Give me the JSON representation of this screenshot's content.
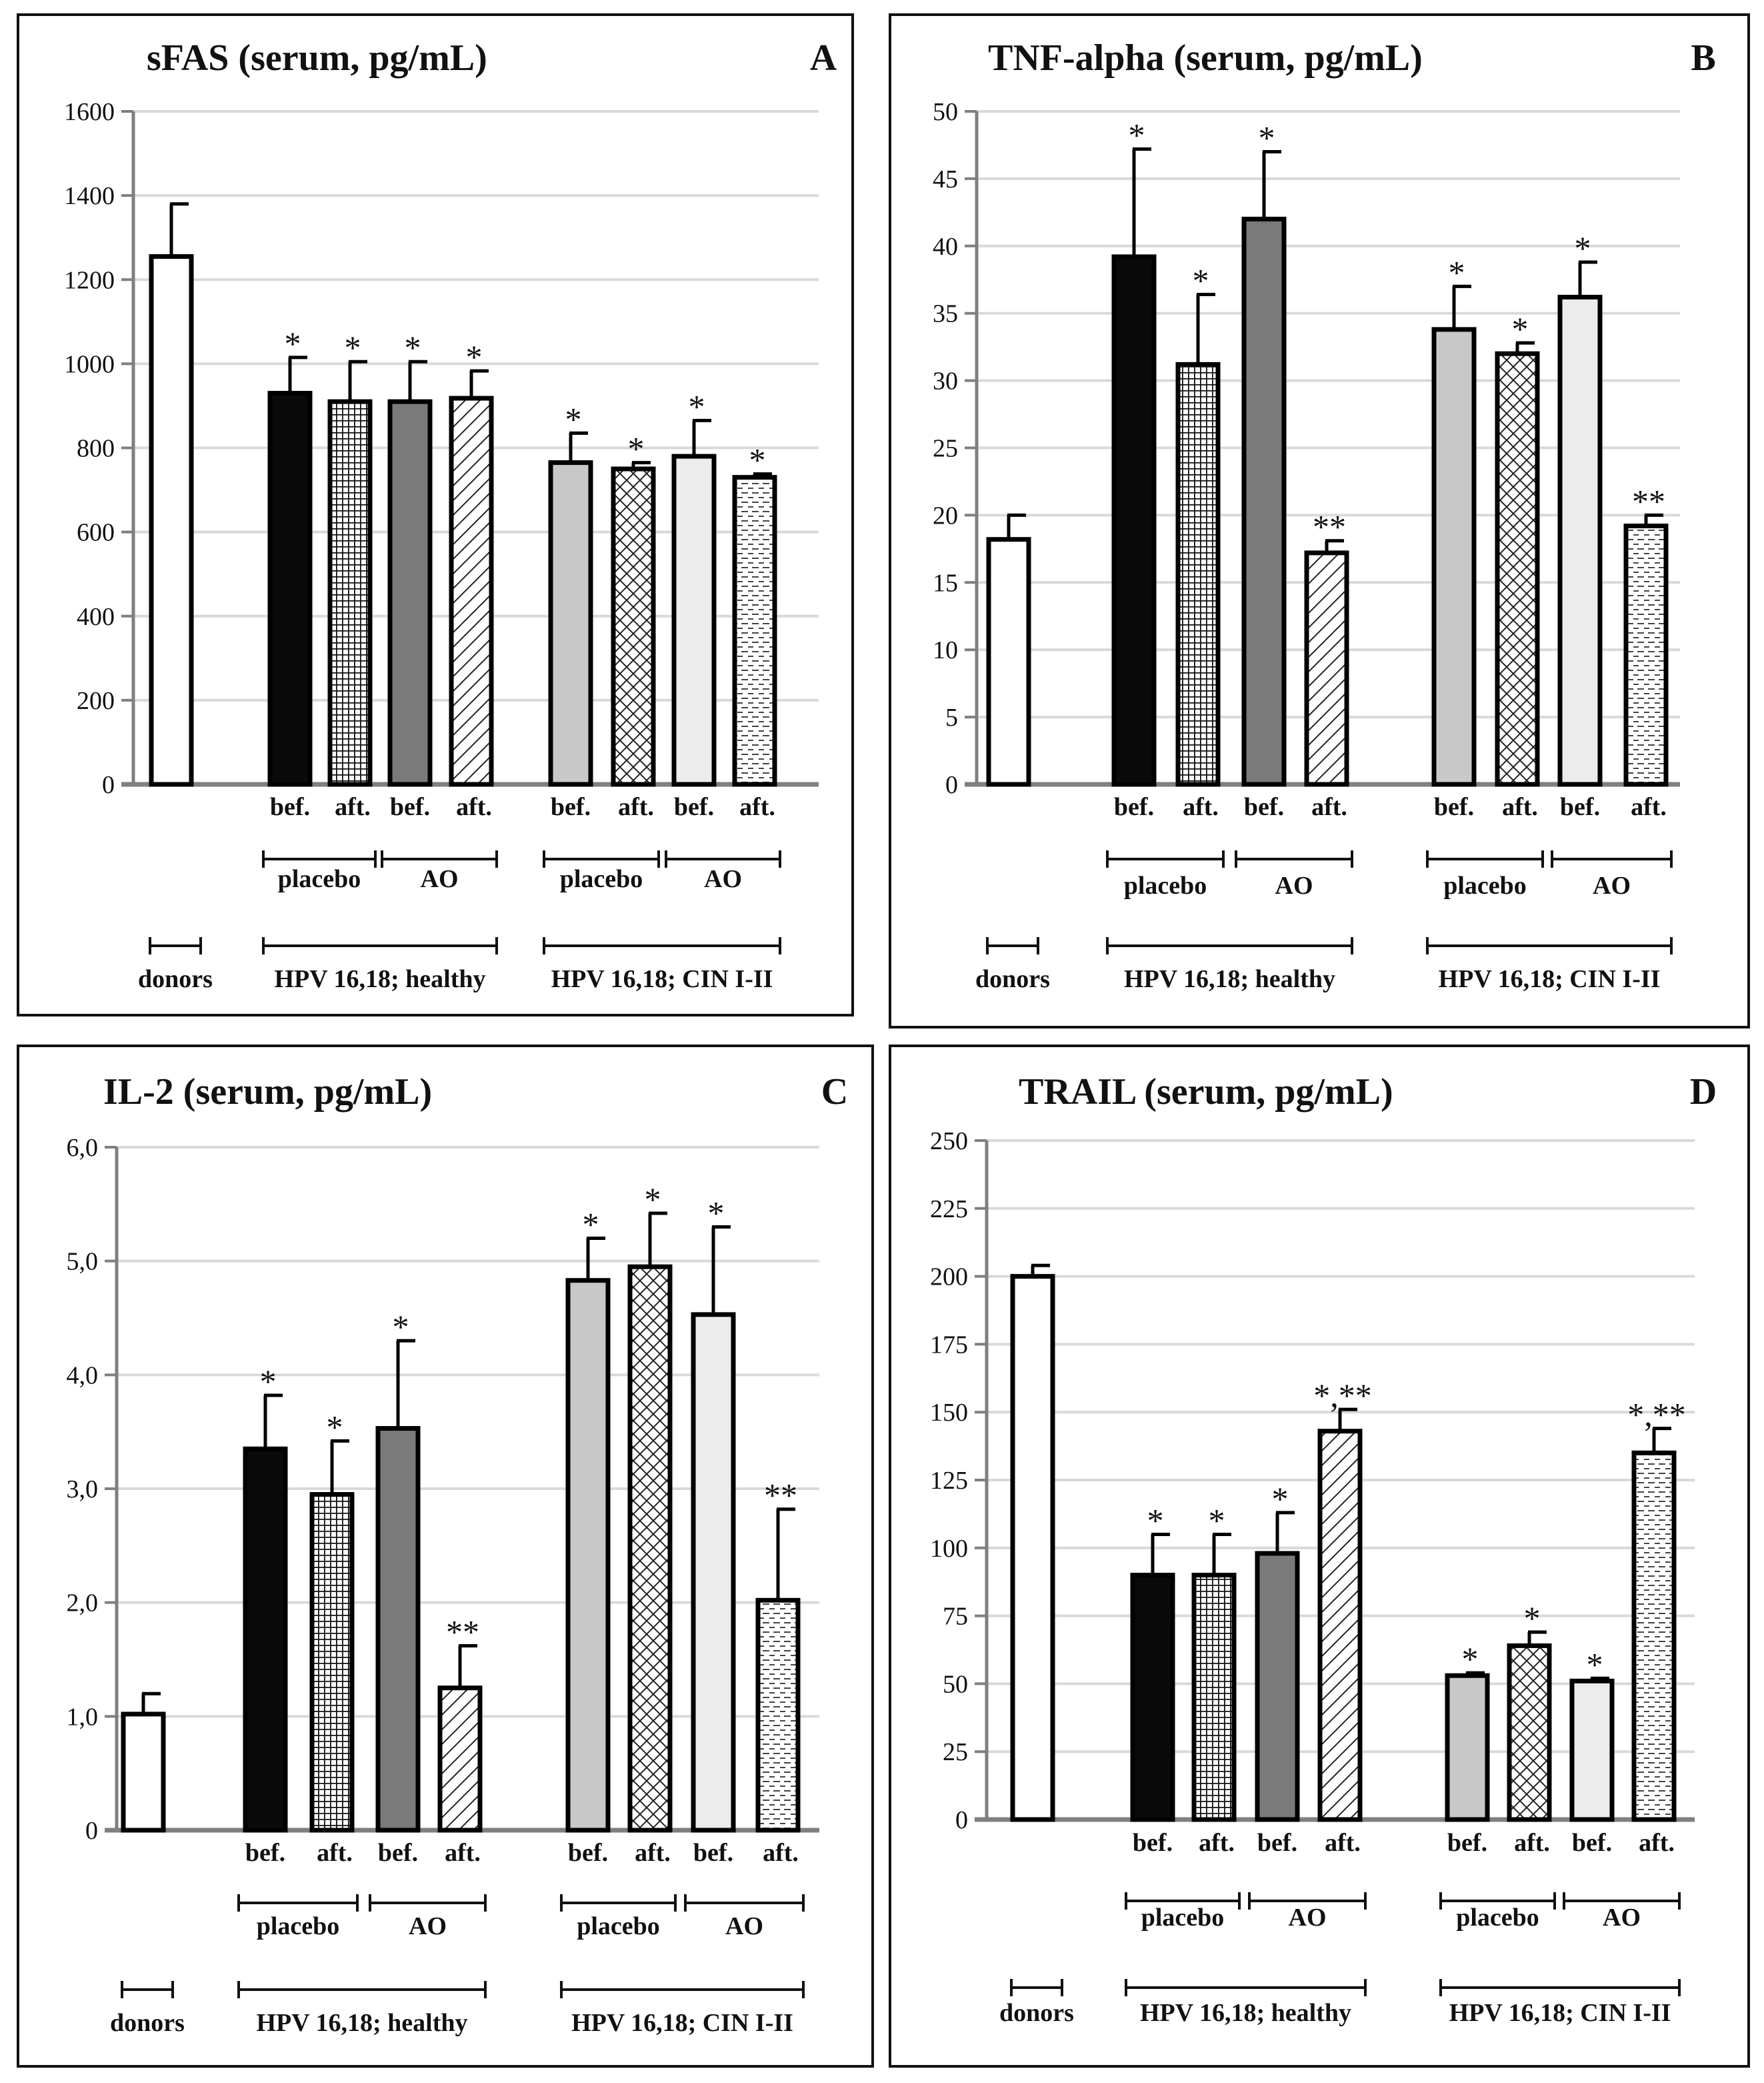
{
  "chart_data": [
    {
      "type": "bar",
      "panel": "A",
      "title": "sFAS (serum, pg/mL)",
      "ylim": [
        0,
        1600
      ],
      "yticks": [
        0,
        200,
        400,
        600,
        800,
        1000,
        1200,
        1400,
        1600
      ],
      "ytick_labels": [
        "0",
        "200",
        "400",
        "600",
        "800",
        "1000",
        "1200",
        "1400",
        "1600"
      ],
      "bars": [
        {
          "group": "donors",
          "label": "",
          "pattern": "white",
          "value": 1255,
          "error": 125,
          "sig": ""
        },
        {
          "group": "HPV 16,18; healthy",
          "sub": "placebo",
          "label": "bef.",
          "pattern": "black",
          "value": 930,
          "error": 85,
          "sig": "*"
        },
        {
          "group": "HPV 16,18; healthy",
          "sub": "placebo",
          "label": "aft.",
          "pattern": "grid",
          "value": 910,
          "error": 95,
          "sig": "*"
        },
        {
          "group": "HPV 16,18; healthy",
          "sub": "AO",
          "label": "bef.",
          "pattern": "darkgray",
          "value": 910,
          "error": 95,
          "sig": "*"
        },
        {
          "group": "HPV 16,18; healthy",
          "sub": "AO",
          "label": "aft.",
          "pattern": "diag",
          "value": 918,
          "error": 65,
          "sig": "*"
        },
        {
          "group": "HPV 16,18; CIN I-II",
          "sub": "placebo",
          "label": "bef.",
          "pattern": "lightgray",
          "value": 765,
          "error": 70,
          "sig": "*"
        },
        {
          "group": "HPV 16,18; CIN I-II",
          "sub": "placebo",
          "label": "aft.",
          "pattern": "cross",
          "value": 750,
          "error": 15,
          "sig": "*"
        },
        {
          "group": "HPV 16,18; CIN I-II",
          "sub": "AO",
          "label": "bef.",
          "pattern": "verylight",
          "value": 780,
          "error": 85,
          "sig": "*"
        },
        {
          "group": "HPV 16,18; CIN I-II",
          "sub": "AO",
          "label": "aft.",
          "pattern": "dash",
          "value": 730,
          "error": 8,
          "sig": "*"
        }
      ]
    },
    {
      "type": "bar",
      "panel": "B",
      "title": "TNF-alpha (serum, pg/mL)",
      "ylim": [
        0,
        50
      ],
      "yticks": [
        0,
        5,
        10,
        15,
        20,
        25,
        30,
        35,
        40,
        45,
        50
      ],
      "ytick_labels": [
        "0",
        "5",
        "10",
        "15",
        "20",
        "25",
        "30",
        "35",
        "40",
        "45",
        "50"
      ],
      "bars": [
        {
          "group": "donors",
          "label": "",
          "pattern": "white",
          "value": 18.2,
          "error": 1.8,
          "sig": ""
        },
        {
          "group": "HPV 16,18; healthy",
          "sub": "placebo",
          "label": "bef.",
          "pattern": "black",
          "value": 39.2,
          "error": 8,
          "sig": "*"
        },
        {
          "group": "HPV 16,18; healthy",
          "sub": "placebo",
          "label": "aft.",
          "pattern": "grid",
          "value": 31.2,
          "error": 5.2,
          "sig": "*"
        },
        {
          "group": "HPV 16,18; healthy",
          "sub": "AO",
          "label": "bef.",
          "pattern": "darkgray",
          "value": 42,
          "error": 5,
          "sig": "*"
        },
        {
          "group": "HPV 16,18; healthy",
          "sub": "AO",
          "label": "aft.",
          "pattern": "diag",
          "value": 17.2,
          "error": 0.9,
          "sig": "**"
        },
        {
          "group": "HPV 16,18; CIN I-II",
          "sub": "placebo",
          "label": "bef.",
          "pattern": "lightgray",
          "value": 33.8,
          "error": 3.2,
          "sig": "*"
        },
        {
          "group": "HPV 16,18; CIN I-II",
          "sub": "placebo",
          "label": "aft.",
          "pattern": "cross",
          "value": 32,
          "error": 0.8,
          "sig": "*"
        },
        {
          "group": "HPV 16,18; CIN I-II",
          "sub": "AO",
          "label": "bef.",
          "pattern": "verylight",
          "value": 36.2,
          "error": 2.6,
          "sig": "*"
        },
        {
          "group": "HPV 16,18; CIN I-II",
          "sub": "AO",
          "label": "aft.",
          "pattern": "dash",
          "value": 19.2,
          "error": 0.8,
          "sig": "**"
        }
      ]
    },
    {
      "type": "bar",
      "panel": "C",
      "title": "IL-2 (serum, pg/mL)",
      "ylim": [
        0,
        6
      ],
      "yticks": [
        0,
        1,
        2,
        3,
        4,
        5,
        6
      ],
      "ytick_labels": [
        "0",
        "1,0",
        "2,0",
        "3,0",
        "4,0",
        "5,0",
        "6,0"
      ],
      "bars": [
        {
          "group": "donors",
          "label": "",
          "pattern": "white",
          "value": 1.02,
          "error": 0.18,
          "sig": ""
        },
        {
          "group": "HPV 16,18; healthy",
          "sub": "placebo",
          "label": "bef.",
          "pattern": "black",
          "value": 3.35,
          "error": 0.47,
          "sig": "*"
        },
        {
          "group": "HPV 16,18; healthy",
          "sub": "placebo",
          "label": "aft.",
          "pattern": "grid",
          "value": 2.95,
          "error": 0.47,
          "sig": "*"
        },
        {
          "group": "HPV 16,18; healthy",
          "sub": "AO",
          "label": "bef.",
          "pattern": "darkgray",
          "value": 3.53,
          "error": 0.77,
          "sig": "*"
        },
        {
          "group": "HPV 16,18; healthy",
          "sub": "AO",
          "label": "aft.",
          "pattern": "diag",
          "value": 1.25,
          "error": 0.37,
          "sig": "**"
        },
        {
          "group": "HPV 16,18; CIN I-II",
          "sub": "placebo",
          "label": "bef.",
          "pattern": "lightgray",
          "value": 4.83,
          "error": 0.37,
          "sig": "*"
        },
        {
          "group": "HPV 16,18; CIN I-II",
          "sub": "placebo",
          "label": "aft.",
          "pattern": "cross",
          "value": 4.95,
          "error": 0.47,
          "sig": "*"
        },
        {
          "group": "HPV 16,18; CIN I-II",
          "sub": "AO",
          "label": "bef.",
          "pattern": "verylight",
          "value": 4.53,
          "error": 0.77,
          "sig": "*"
        },
        {
          "group": "HPV 16,18; CIN I-II",
          "sub": "AO",
          "label": "aft.",
          "pattern": "dash",
          "value": 2.02,
          "error": 0.8,
          "sig": "**"
        }
      ]
    },
    {
      "type": "bar",
      "panel": "D",
      "title": "TRAIL (serum, pg/mL)",
      "ylim": [
        0,
        250
      ],
      "yticks": [
        0,
        25,
        50,
        75,
        100,
        125,
        150,
        175,
        200,
        225,
        250
      ],
      "ytick_labels": [
        "0",
        "25",
        "50",
        "75",
        "100",
        "125",
        "150",
        "175",
        "200",
        "225",
        "250"
      ],
      "bars": [
        {
          "group": "donors",
          "label": "",
          "pattern": "white",
          "value": 200,
          "error": 4,
          "sig": ""
        },
        {
          "group": "HPV 16,18; healthy",
          "sub": "placebo",
          "label": "bef.",
          "pattern": "black",
          "value": 90,
          "error": 15,
          "sig": "*"
        },
        {
          "group": "HPV 16,18; healthy",
          "sub": "placebo",
          "label": "aft.",
          "pattern": "grid",
          "value": 90,
          "error": 15,
          "sig": "*"
        },
        {
          "group": "HPV 16,18; healthy",
          "sub": "AO",
          "label": "bef.",
          "pattern": "darkgray",
          "value": 98,
          "error": 15,
          "sig": "*"
        },
        {
          "group": "HPV 16,18; healthy",
          "sub": "AO",
          "label": "aft.",
          "pattern": "diag",
          "value": 143,
          "error": 8,
          "sig": "*,**"
        },
        {
          "group": "HPV 16,18; CIN I-II",
          "sub": "placebo",
          "label": "bef.",
          "pattern": "lightgray",
          "value": 53,
          "error": 1,
          "sig": "*"
        },
        {
          "group": "HPV 16,18; CIN I-II",
          "sub": "placebo",
          "label": "aft.",
          "pattern": "cross",
          "value": 64,
          "error": 5,
          "sig": "*"
        },
        {
          "group": "HPV 16,18; CIN I-II",
          "sub": "AO",
          "label": "bef.",
          "pattern": "verylight",
          "value": 51,
          "error": 1,
          "sig": "*"
        },
        {
          "group": "HPV 16,18; CIN I-II",
          "sub": "AO",
          "label": "aft.",
          "pattern": "dash",
          "value": 135,
          "error": 9,
          "sig": "*,**"
        }
      ]
    }
  ],
  "categories": {
    "bef": "bef.",
    "aft": "aft.",
    "placebo": "placebo",
    "ao": "AO",
    "donors": "donors",
    "healthy": "HPV 16,18; healthy",
    "cin": "HPV 16,18; CIN I-II"
  },
  "colors": {
    "black": "#0a0a0a",
    "darkgray": "#7a7a7a",
    "lightgray": "#c8c8c8",
    "verylight": "#ececec",
    "white": "#ffffff",
    "grid": "#d9d9d9",
    "axis": "#7f7f7f"
  }
}
